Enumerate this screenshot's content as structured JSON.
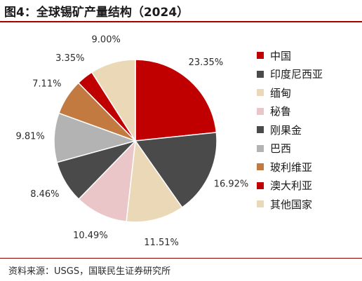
{
  "title": "图4：全球锡矿产量结构（2024）",
  "source": "资料来源：USGS，国联民生证券研究所",
  "colors": {
    "accent_rule": "#a50000"
  },
  "chart_data": {
    "type": "pie",
    "categories": [
      "中国",
      "印度尼西亚",
      "缅甸",
      "秘鲁",
      "刚果金",
      "巴西",
      "玻利维亚",
      "澳大利亚",
      "其他国家"
    ],
    "values": [
      23.35,
      16.92,
      11.51,
      10.49,
      8.46,
      9.81,
      7.11,
      3.35,
      9.0
    ],
    "value_labels": [
      "23.35%",
      "16.92%",
      "11.51%",
      "10.49%",
      "8.46%",
      "9.81%",
      "7.11%",
      "3.35%",
      "9.00%"
    ],
    "colors": [
      "#c00000",
      "#4a4a4a",
      "#ead8b6",
      "#eac6c8",
      "#4a4a4a",
      "#b3b3b3",
      "#c27a40",
      "#c00000",
      "#ead8b6"
    ],
    "start_angle_deg": 0,
    "direction": "clockwise",
    "legend_position": "right"
  }
}
